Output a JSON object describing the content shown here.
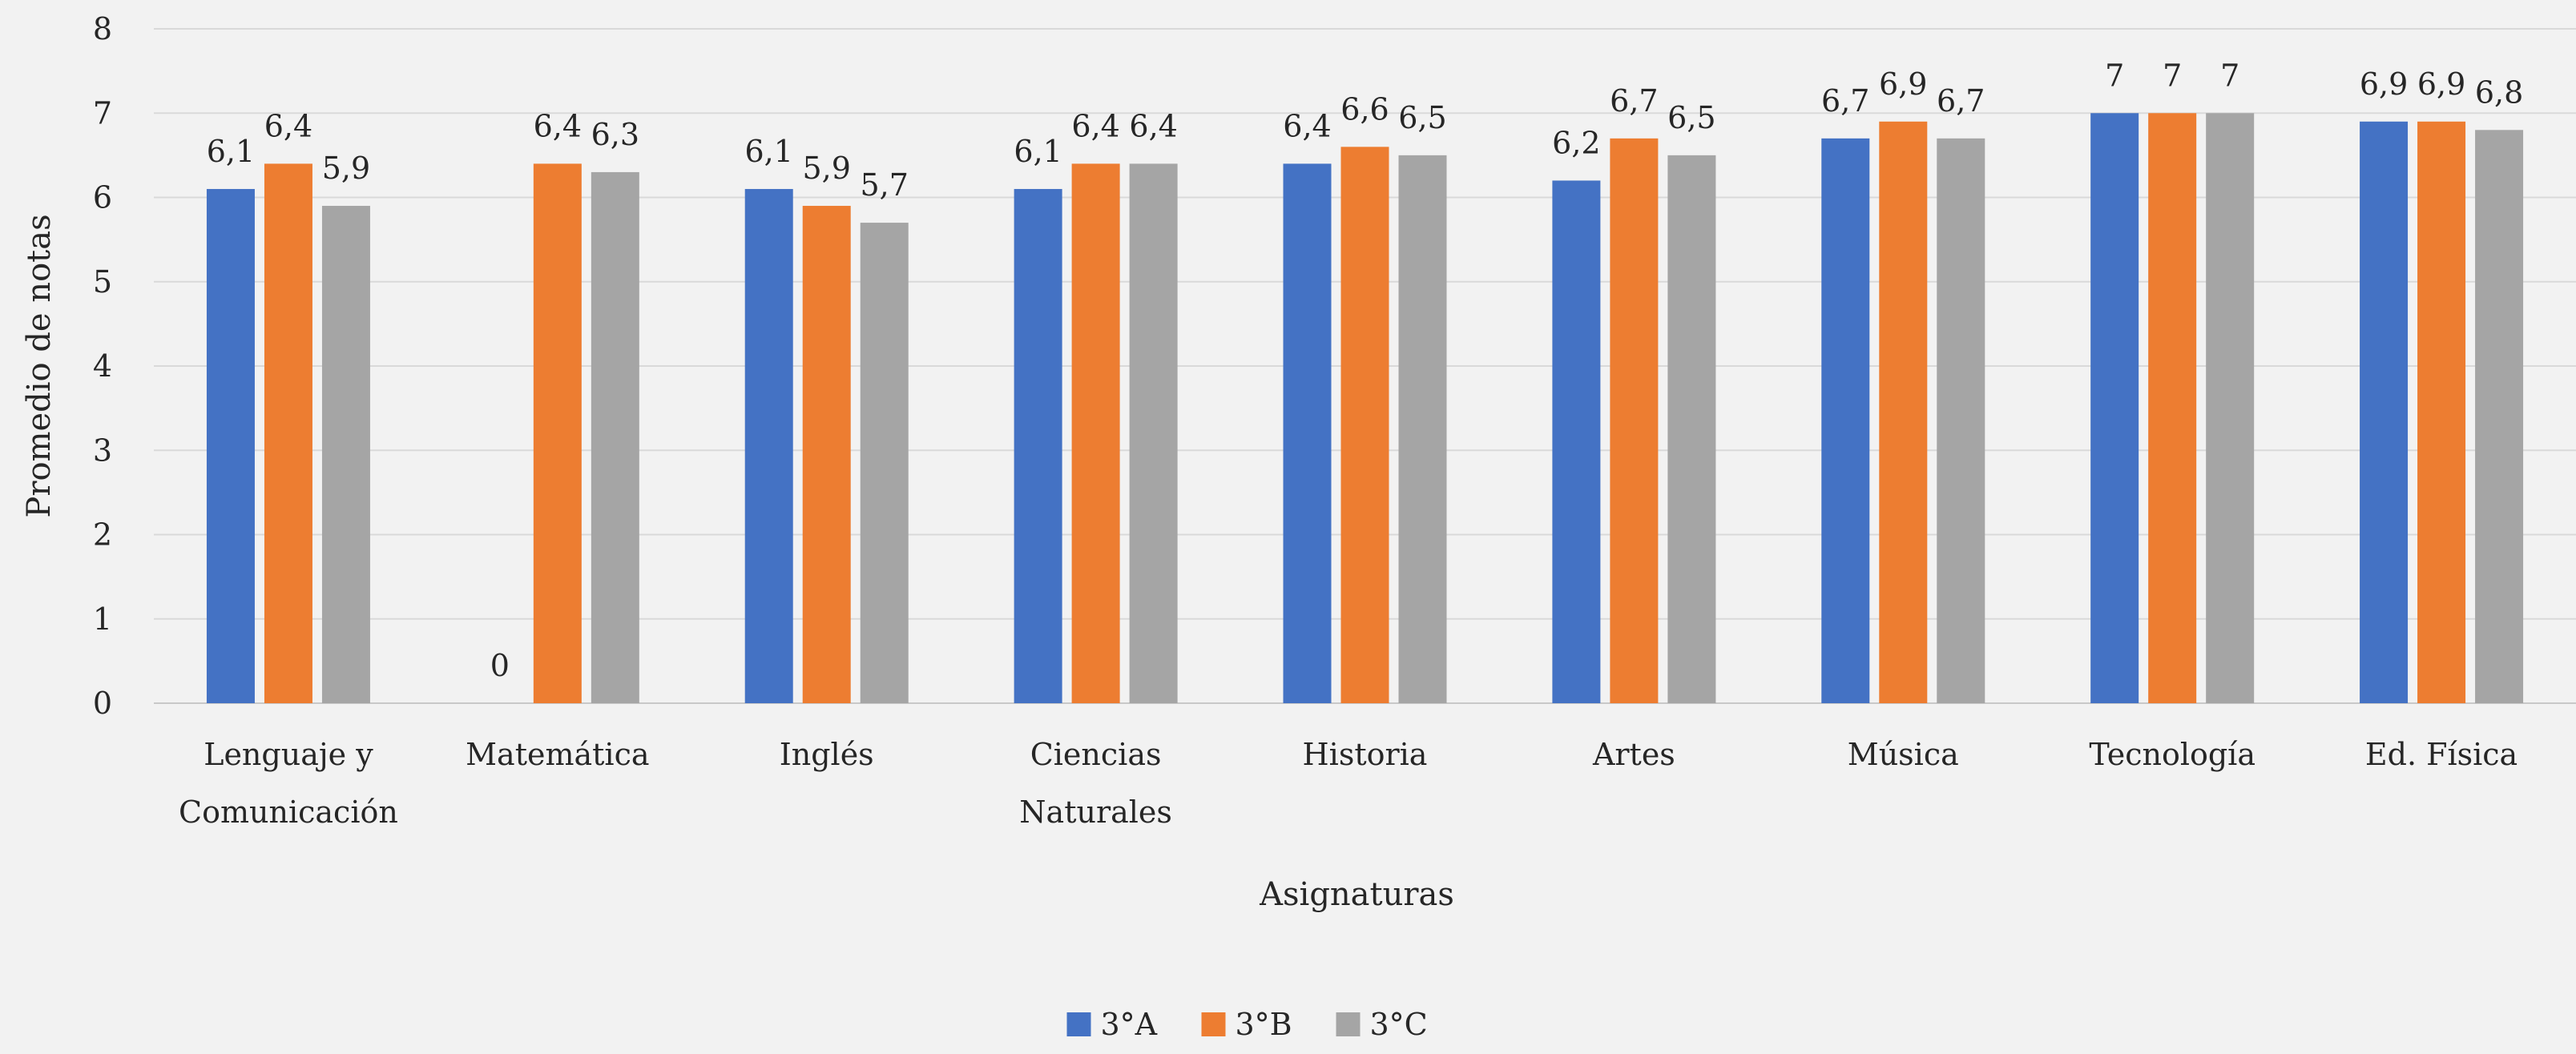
{
  "chart_data": {
    "type": "bar",
    "title": "",
    "xlabel": "Asignaturas",
    "ylabel": "Promedio de notas",
    "ylim": [
      0,
      8
    ],
    "yticks": [
      "0",
      "1",
      "2",
      "3",
      "4",
      "5",
      "6",
      "7",
      "8"
    ],
    "grid": true,
    "legend_position": "bottom",
    "categories": [
      [
        "Lenguaje y",
        "Comunicación"
      ],
      [
        "Matemática"
      ],
      [
        "Inglés"
      ],
      [
        "Ciencias",
        "Naturales"
      ],
      [
        "Historia"
      ],
      [
        "Artes"
      ],
      [
        "Música"
      ],
      [
        "Tecnología"
      ],
      [
        "Ed. Física"
      ]
    ],
    "series": [
      {
        "name": "3°A",
        "color": "#4472c4",
        "values": [
          6.1,
          0,
          6.1,
          6.1,
          6.4,
          6.2,
          6.7,
          7,
          6.9
        ],
        "labels": [
          "6,1",
          "0",
          "6,1",
          "6,1",
          "6,4",
          "6,2",
          "6,7",
          "7",
          "6,9"
        ]
      },
      {
        "name": "3°B",
        "color": "#ed7d31",
        "values": [
          6.4,
          6.4,
          5.9,
          6.4,
          6.6,
          6.7,
          6.9,
          7,
          6.9
        ],
        "labels": [
          "6,4",
          "6,4",
          "5,9",
          "6,4",
          "6,6",
          "6,7",
          "6,9",
          "7",
          "6,9"
        ]
      },
      {
        "name": "3°C",
        "color": "#a5a5a5",
        "values": [
          5.9,
          6.3,
          5.7,
          6.4,
          6.5,
          6.5,
          6.7,
          7,
          6.8
        ],
        "labels": [
          "5,9",
          "6,3",
          "5,7",
          "6,4",
          "6,5",
          "6,5",
          "6,7",
          "7",
          "6,8"
        ]
      }
    ]
  }
}
